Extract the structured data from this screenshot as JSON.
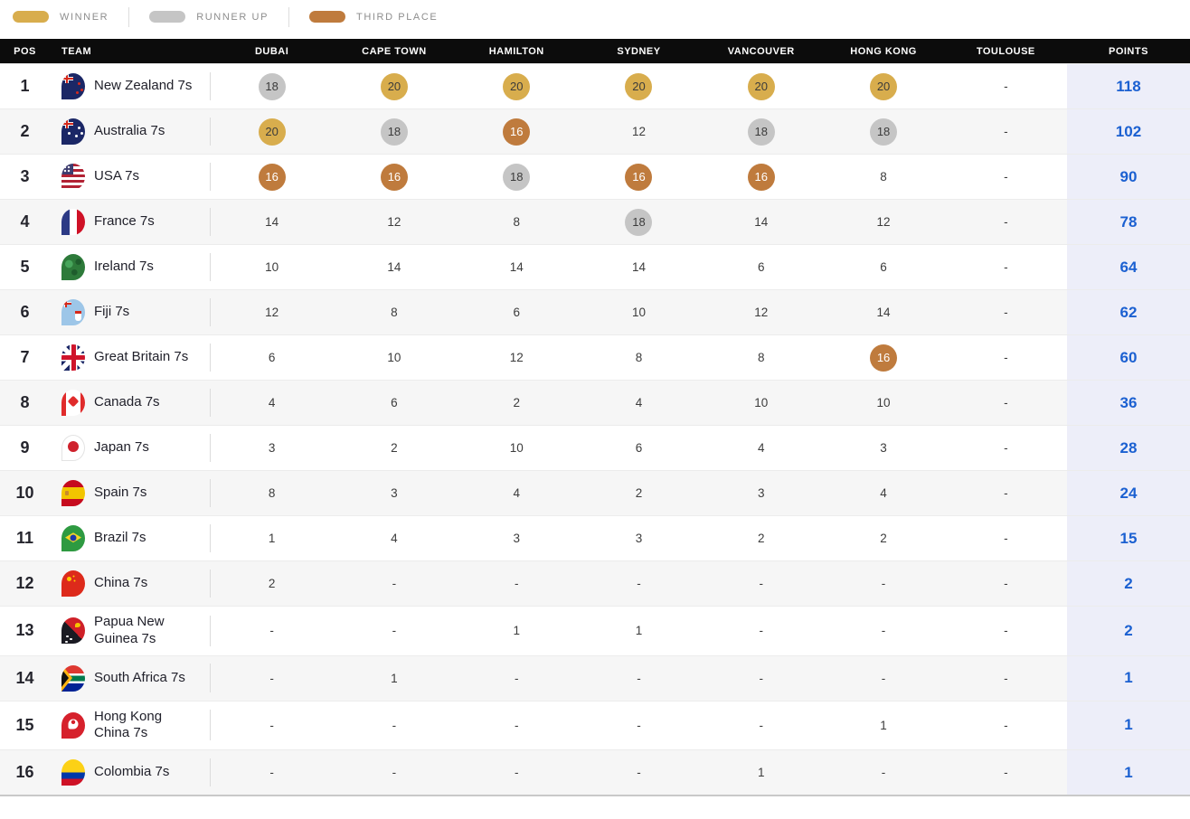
{
  "legend": {
    "winner": "WINNER",
    "runner_up": "RUNNER UP",
    "third_place": "THIRD PLACE"
  },
  "colors": {
    "gold": "#d8ad4d",
    "silver": "#c5c5c5",
    "bronze": "#bf7b3d",
    "points_text": "#1b60d1",
    "points_bg": "#edeef9",
    "header_bg": "#0c0c0c"
  },
  "table": {
    "headers": [
      "POS",
      "TEAM",
      "DUBAI",
      "CAPE TOWN",
      "HAMILTON",
      "SYDNEY",
      "VANCOUVER",
      "HONG KONG",
      "TOULOUSE",
      "POINTS"
    ],
    "rows": [
      {
        "pos": "1",
        "team": "New Zealand 7s",
        "flag": "nz",
        "points": "118",
        "scores": [
          {
            "v": "18",
            "m": "silver"
          },
          {
            "v": "20",
            "m": "gold"
          },
          {
            "v": "20",
            "m": "gold"
          },
          {
            "v": "20",
            "m": "gold"
          },
          {
            "v": "20",
            "m": "gold"
          },
          {
            "v": "20",
            "m": "gold"
          },
          {
            "v": "-"
          }
        ]
      },
      {
        "pos": "2",
        "team": "Australia 7s",
        "flag": "au",
        "points": "102",
        "scores": [
          {
            "v": "20",
            "m": "gold"
          },
          {
            "v": "18",
            "m": "silver"
          },
          {
            "v": "16",
            "m": "bronze"
          },
          {
            "v": "12"
          },
          {
            "v": "18",
            "m": "silver"
          },
          {
            "v": "18",
            "m": "silver"
          },
          {
            "v": "-"
          }
        ]
      },
      {
        "pos": "3",
        "team": "USA 7s",
        "flag": "us",
        "points": "90",
        "scores": [
          {
            "v": "16",
            "m": "bronze"
          },
          {
            "v": "16",
            "m": "bronze"
          },
          {
            "v": "18",
            "m": "silver"
          },
          {
            "v": "16",
            "m": "bronze"
          },
          {
            "v": "16",
            "m": "bronze"
          },
          {
            "v": "8"
          },
          {
            "v": "-"
          }
        ]
      },
      {
        "pos": "4",
        "team": "France 7s",
        "flag": "fr",
        "points": "78",
        "scores": [
          {
            "v": "14"
          },
          {
            "v": "12"
          },
          {
            "v": "8"
          },
          {
            "v": "18",
            "m": "silver"
          },
          {
            "v": "14"
          },
          {
            "v": "12"
          },
          {
            "v": "-"
          }
        ]
      },
      {
        "pos": "5",
        "team": "Ireland 7s",
        "flag": "ie",
        "points": "64",
        "scores": [
          {
            "v": "10"
          },
          {
            "v": "14"
          },
          {
            "v": "14"
          },
          {
            "v": "14"
          },
          {
            "v": "6"
          },
          {
            "v": "6"
          },
          {
            "v": "-"
          }
        ]
      },
      {
        "pos": "6",
        "team": "Fiji 7s",
        "flag": "fj",
        "points": "62",
        "scores": [
          {
            "v": "12"
          },
          {
            "v": "8"
          },
          {
            "v": "6"
          },
          {
            "v": "10"
          },
          {
            "v": "12"
          },
          {
            "v": "14"
          },
          {
            "v": "-"
          }
        ]
      },
      {
        "pos": "7",
        "team": "Great Britain 7s",
        "flag": "gb",
        "points": "60",
        "scores": [
          {
            "v": "6"
          },
          {
            "v": "10"
          },
          {
            "v": "12"
          },
          {
            "v": "8"
          },
          {
            "v": "8"
          },
          {
            "v": "16",
            "m": "bronze"
          },
          {
            "v": "-"
          }
        ]
      },
      {
        "pos": "8",
        "team": "Canada 7s",
        "flag": "ca",
        "points": "36",
        "scores": [
          {
            "v": "4"
          },
          {
            "v": "6"
          },
          {
            "v": "2"
          },
          {
            "v": "4"
          },
          {
            "v": "10"
          },
          {
            "v": "10"
          },
          {
            "v": "-"
          }
        ]
      },
      {
        "pos": "9",
        "team": "Japan 7s",
        "flag": "jp",
        "points": "28",
        "scores": [
          {
            "v": "3"
          },
          {
            "v": "2"
          },
          {
            "v": "10"
          },
          {
            "v": "6"
          },
          {
            "v": "4"
          },
          {
            "v": "3"
          },
          {
            "v": "-"
          }
        ]
      },
      {
        "pos": "10",
        "team": "Spain 7s",
        "flag": "es",
        "points": "24",
        "scores": [
          {
            "v": "8"
          },
          {
            "v": "3"
          },
          {
            "v": "4"
          },
          {
            "v": "2"
          },
          {
            "v": "3"
          },
          {
            "v": "4"
          },
          {
            "v": "-"
          }
        ]
      },
      {
        "pos": "11",
        "team": "Brazil 7s",
        "flag": "br",
        "points": "15",
        "scores": [
          {
            "v": "1"
          },
          {
            "v": "4"
          },
          {
            "v": "3"
          },
          {
            "v": "3"
          },
          {
            "v": "2"
          },
          {
            "v": "2"
          },
          {
            "v": "-"
          }
        ]
      },
      {
        "pos": "12",
        "team": "China 7s",
        "flag": "cn",
        "points": "2",
        "scores": [
          {
            "v": "2"
          },
          {
            "v": "-"
          },
          {
            "v": "-"
          },
          {
            "v": "-"
          },
          {
            "v": "-"
          },
          {
            "v": "-"
          },
          {
            "v": "-"
          }
        ]
      },
      {
        "pos": "13",
        "team": "Papua New Guinea 7s",
        "flag": "pg",
        "points": "2",
        "scores": [
          {
            "v": "-"
          },
          {
            "v": "-"
          },
          {
            "v": "1"
          },
          {
            "v": "1"
          },
          {
            "v": "-"
          },
          {
            "v": "-"
          },
          {
            "v": "-"
          }
        ]
      },
      {
        "pos": "14",
        "team": "South Africa 7s",
        "flag": "za",
        "points": "1",
        "scores": [
          {
            "v": "-"
          },
          {
            "v": "1"
          },
          {
            "v": "-"
          },
          {
            "v": "-"
          },
          {
            "v": "-"
          },
          {
            "v": "-"
          },
          {
            "v": "-"
          }
        ]
      },
      {
        "pos": "15",
        "team": "Hong Kong China 7s",
        "flag": "hk",
        "points": "1",
        "scores": [
          {
            "v": "-"
          },
          {
            "v": "-"
          },
          {
            "v": "-"
          },
          {
            "v": "-"
          },
          {
            "v": "-"
          },
          {
            "v": "1"
          },
          {
            "v": "-"
          }
        ]
      },
      {
        "pos": "16",
        "team": "Colombia 7s",
        "flag": "co",
        "points": "1",
        "scores": [
          {
            "v": "-"
          },
          {
            "v": "-"
          },
          {
            "v": "-"
          },
          {
            "v": "-"
          },
          {
            "v": "1"
          },
          {
            "v": "-"
          },
          {
            "v": "-"
          }
        ]
      }
    ]
  }
}
